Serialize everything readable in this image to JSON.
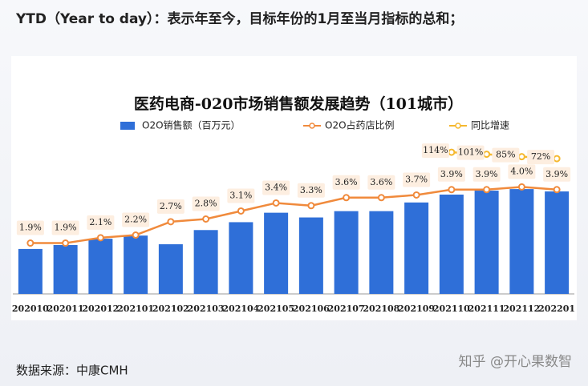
{
  "header": "YTD（Year to day）：表示年至今，目标年份的1月至当月指标的总和；",
  "footer": "数据来源：中康CMH",
  "watermark": "知乎 @开心果数智",
  "chart_data": {
    "type": "bar",
    "title": "医药电商-020市场销售额发展趋势（101城市）",
    "categories": [
      "202010",
      "202011",
      "202012",
      "202101",
      "202102",
      "202103",
      "202104",
      "202105",
      "202106",
      "202107",
      "202108",
      "202109",
      "202110",
      "202111",
      "202112",
      "202201"
    ],
    "ylim": [
      0,
      190
    ],
    "y2lim": [
      0,
      5.6
    ],
    "y3lim": [
      -814,
      167
    ],
    "series": [
      {
        "name": "O2O销售额（百万元）",
        "type": "bar",
        "color": "#2f6fd8",
        "values": [
          57,
          62,
          70,
          74,
          63,
          81,
          91,
          103,
          97,
          105,
          105,
          116,
          126,
          131,
          133,
          130
        ]
      },
      {
        "name": "O2O占药店比例",
        "type": "line",
        "axis": "y2",
        "color": "#f08a3c",
        "values": [
          1.9,
          1.9,
          2.1,
          2.2,
          2.7,
          2.8,
          3.1,
          3.4,
          3.3,
          3.6,
          3.6,
          3.7,
          3.9,
          3.9,
          4.0,
          3.9
        ],
        "value_labels": [
          "1.9%",
          "1.9%",
          "2.1%",
          "2.2%",
          "2.7%",
          "2.8%",
          "3.1%",
          "3.4%",
          "3.3%",
          "3.6%",
          "3.6%",
          "3.7%",
          "3.9%",
          "3.9%",
          "4.0%",
          "3.9%"
        ]
      },
      {
        "name": "同比增速",
        "type": "line",
        "axis": "y3",
        "color": "#f5b82e",
        "values": [
          null,
          null,
          null,
          null,
          null,
          null,
          null,
          null,
          null,
          null,
          null,
          null,
          114,
          101,
          85,
          72
        ],
        "value_labels": [
          null,
          null,
          null,
          null,
          null,
          null,
          null,
          null,
          null,
          null,
          null,
          null,
          "114%",
          "101%",
          "85%",
          "72%"
        ]
      }
    ]
  }
}
